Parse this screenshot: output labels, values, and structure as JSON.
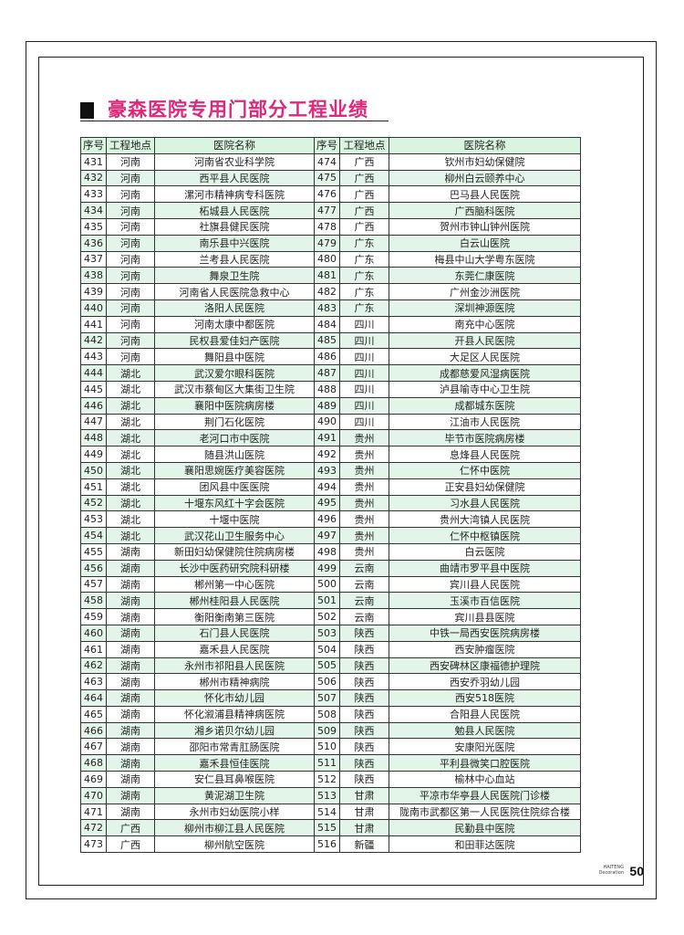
{
  "title": "豪森医院专用门部分工程业绩",
  "headers": [
    "序号",
    "工程地点",
    "医院名称",
    "序号",
    "工程地点",
    "医院名称"
  ],
  "colors": {
    "title": "#e0277b",
    "header_bg": "#d9f5e2",
    "stripe_bg": "#e2f5e8"
  },
  "left_rows": [
    [
      "431",
      "河南",
      "河南省农业科学院"
    ],
    [
      "432",
      "河南",
      "西平县人民医院"
    ],
    [
      "433",
      "河南",
      "漯河市精神病专科医院"
    ],
    [
      "434",
      "河南",
      "柘城县人民医院"
    ],
    [
      "435",
      "河南",
      "社旗县健民医院"
    ],
    [
      "436",
      "河南",
      "南乐县中兴医院"
    ],
    [
      "437",
      "河南",
      "兰考县人民医院"
    ],
    [
      "438",
      "河南",
      "舞泉卫生院"
    ],
    [
      "439",
      "河南",
      "河南省人民医院急救中心"
    ],
    [
      "440",
      "河南",
      "洛阳人民医院"
    ],
    [
      "441",
      "河南",
      "河南太康中都医院"
    ],
    [
      "442",
      "河南",
      "民权县爱佳妇产医院"
    ],
    [
      "443",
      "河南",
      "舞阳县中医院"
    ],
    [
      "444",
      "湖北",
      "武汉爱尔眼科医院"
    ],
    [
      "445",
      "湖北",
      "武汉市蔡甸区大集街卫生院"
    ],
    [
      "446",
      "湖北",
      "襄阳中医院病房楼"
    ],
    [
      "447",
      "湖北",
      "荆门石化医院"
    ],
    [
      "448",
      "湖北",
      "老河口市中医院"
    ],
    [
      "449",
      "湖北",
      "随县洪山医院"
    ],
    [
      "450",
      "湖北",
      "襄阳思婉医疗美容医院"
    ],
    [
      "451",
      "湖北",
      "团风县中医医院"
    ],
    [
      "452",
      "湖北",
      "十堰东风红十字会医院"
    ],
    [
      "453",
      "湖北",
      "十堰中医院"
    ],
    [
      "454",
      "湖北",
      "武汉花山卫生服务中心"
    ],
    [
      "455",
      "湖南",
      "新田妇幼保健院住院病房楼"
    ],
    [
      "456",
      "湖南",
      "长沙中医药研究院科研楼"
    ],
    [
      "457",
      "湖南",
      "郴州第一中心医院"
    ],
    [
      "458",
      "湖南",
      "郴州桂阳县人民医院"
    ],
    [
      "459",
      "湖南",
      "衡阳衡南第三医院"
    ],
    [
      "460",
      "湖南",
      "石门县人民医院"
    ],
    [
      "461",
      "湖南",
      "嘉禾县人民医院"
    ],
    [
      "462",
      "湖南",
      "永州市祁阳县人民医院"
    ],
    [
      "463",
      "湖南",
      "郴州市精神病院"
    ],
    [
      "464",
      "湖南",
      "怀化市幼儿园"
    ],
    [
      "465",
      "湖南",
      "怀化溆浦县精神病医院"
    ],
    [
      "466",
      "湖南",
      "湘乡诺贝尔幼儿园"
    ],
    [
      "467",
      "湖南",
      "邵阳市常青肛肠医院"
    ],
    [
      "468",
      "湖南",
      "嘉禾县恒佳医院"
    ],
    [
      "469",
      "湖南",
      "安仁县耳鼻喉医院"
    ],
    [
      "470",
      "湖南",
      "黄泥湖卫生院"
    ],
    [
      "471",
      "湖南",
      "永州市妇幼医院小样"
    ],
    [
      "472",
      "广西",
      "柳州市柳江县人民医院"
    ],
    [
      "473",
      "广西",
      "柳州航空医院"
    ]
  ],
  "right_rows": [
    [
      "474",
      "广西",
      "钦州市妇幼保健院"
    ],
    [
      "475",
      "广西",
      "柳州白云颐养中心"
    ],
    [
      "476",
      "广西",
      "巴马县人民医院"
    ],
    [
      "477",
      "广西",
      "广西脑科医院"
    ],
    [
      "478",
      "广西",
      "贺州市钟山钟州医院"
    ],
    [
      "479",
      "广东",
      "白云山医院"
    ],
    [
      "480",
      "广东",
      "梅县中山大学粤东医院"
    ],
    [
      "481",
      "广东",
      "东莞仁康医院"
    ],
    [
      "482",
      "广东",
      "广州金沙洲医院"
    ],
    [
      "483",
      "广东",
      "深圳神源医院"
    ],
    [
      "484",
      "四川",
      "南充中心医院"
    ],
    [
      "485",
      "四川",
      "开县人民医院"
    ],
    [
      "486",
      "四川",
      "大足区人民医院"
    ],
    [
      "487",
      "四川",
      "成都慈爱风湿病医院"
    ],
    [
      "488",
      "四川",
      "泸县喻寺中心卫生院"
    ],
    [
      "489",
      "四川",
      "成都城东医院"
    ],
    [
      "490",
      "四川",
      "江油市人民医院"
    ],
    [
      "491",
      "贵州",
      "毕节市医院病房楼"
    ],
    [
      "492",
      "贵州",
      "息烽县人民医院"
    ],
    [
      "493",
      "贵州",
      "仁怀中医院"
    ],
    [
      "494",
      "贵州",
      "正安县妇幼保健院"
    ],
    [
      "495",
      "贵州",
      "习水县人民医院"
    ],
    [
      "496",
      "贵州",
      "贵州大湾镇人民医院"
    ],
    [
      "497",
      "贵州",
      "仁怀中枢镇医院"
    ],
    [
      "498",
      "贵州",
      "白云医院"
    ],
    [
      "499",
      "云南",
      "曲靖市罗平县中医院"
    ],
    [
      "500",
      "云南",
      "宾川县人民医院"
    ],
    [
      "501",
      "云南",
      "玉溪市百信医院"
    ],
    [
      "502",
      "云南",
      "宾川县县医院"
    ],
    [
      "503",
      "陕西",
      "中铁一局西安医院病房楼"
    ],
    [
      "504",
      "陕西",
      "西安肿瘤医院"
    ],
    [
      "505",
      "陕西",
      "西安碑林区康福德护理院"
    ],
    [
      "506",
      "陕西",
      "西安乔羽幼儿园"
    ],
    [
      "507",
      "陕西",
      "西安518医院"
    ],
    [
      "508",
      "陕西",
      "合阳县人民医院"
    ],
    [
      "509",
      "陕西",
      "勉县人民医院"
    ],
    [
      "510",
      "陕西",
      "安康阳光医院"
    ],
    [
      "511",
      "陕西",
      "平利县微笑口腔医院"
    ],
    [
      "512",
      "陕西",
      "榆林中心血站"
    ],
    [
      "513",
      "甘肃",
      "平凉市华亭县人民医院门诊楼"
    ],
    [
      "514",
      "甘肃",
      "陇南市武都区第一人民医院住院综合楼"
    ],
    [
      "515",
      "甘肃",
      "民勤县中医院"
    ],
    [
      "516",
      "新疆",
      "和田菲达医院"
    ]
  ],
  "footer": {
    "brand_line1": "HAITENG",
    "brand_line2": "Decoration",
    "page_number": "50"
  }
}
